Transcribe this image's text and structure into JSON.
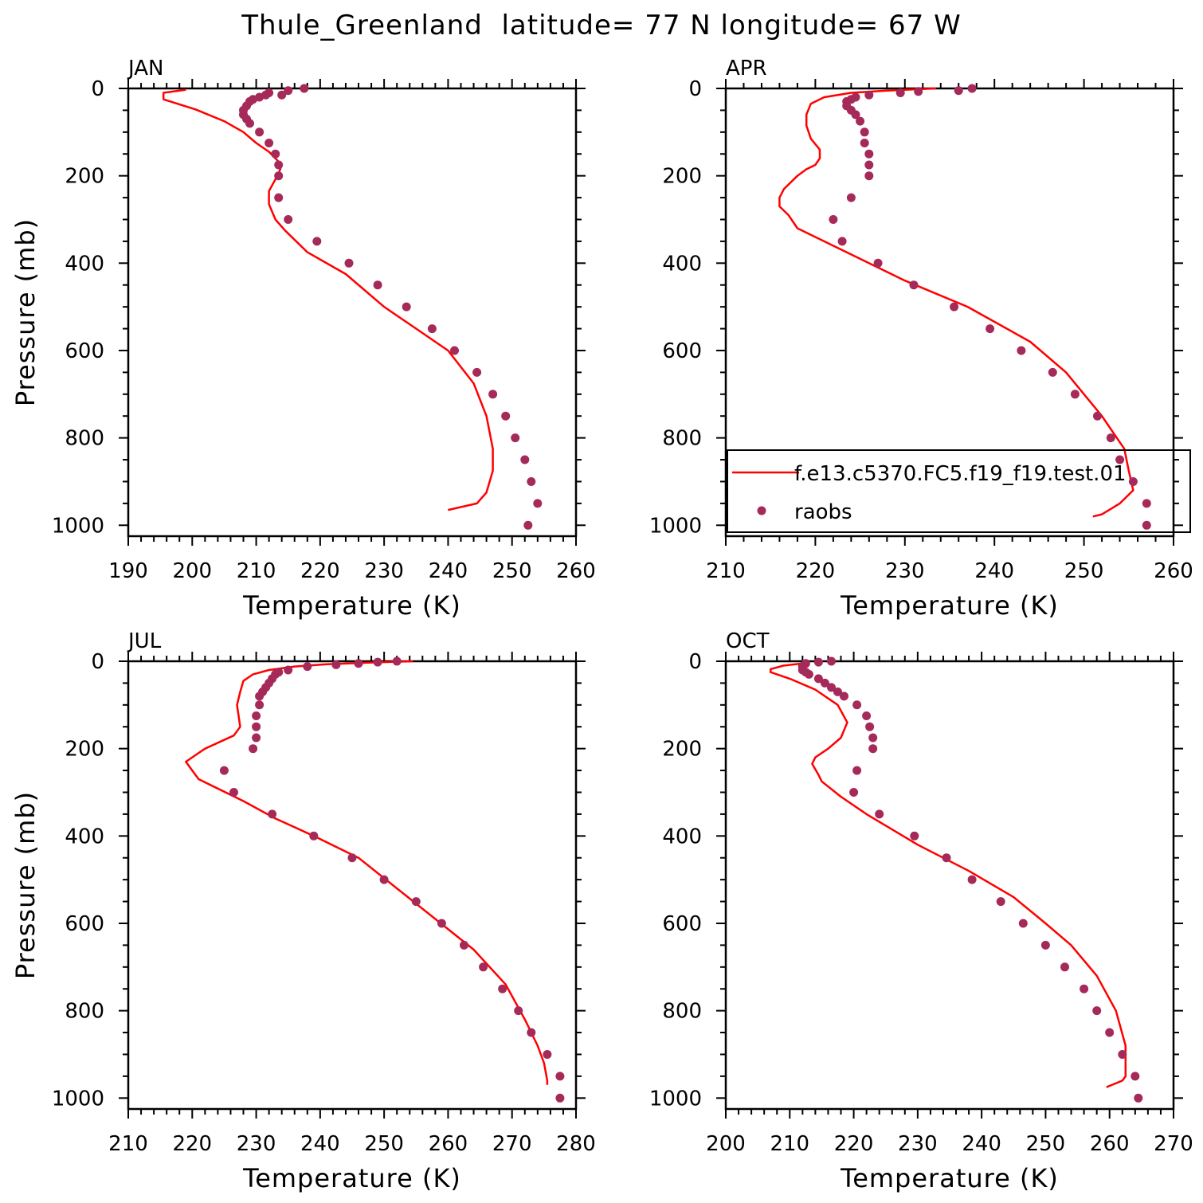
{
  "title": "Thule_Greenland  latitude= 77 N longitude= 67 W",
  "colors": {
    "model": "#ff0000",
    "obs": "#a52a5a",
    "axis": "#000000"
  },
  "legend": {
    "panel": 1,
    "model_label": "f.e13.c5370.FC5.f19_f19.test.01",
    "obs_label": "raobs"
  },
  "chart_data": [
    {
      "type": "line",
      "panel_label": "JAN",
      "xlabel": "Temperature (K)",
      "ylabel": "Pressure (mb)",
      "xlim": [
        190,
        260
      ],
      "ylim": [
        1000,
        0
      ],
      "xticks": [
        190,
        200,
        210,
        220,
        230,
        240,
        250,
        260
      ],
      "yticks": [
        0,
        200,
        400,
        600,
        800,
        1000
      ],
      "series": [
        {
          "kind": "model_line",
          "points": [
            [
              199,
              3
            ],
            [
              195.5,
              10
            ],
            [
              195.5,
              25
            ],
            [
              200.5,
              48
            ],
            [
              205,
              75
            ],
            [
              208,
              100
            ],
            [
              210,
              125
            ],
            [
              212,
              145
            ],
            [
              214,
              175
            ],
            [
              213.5,
              195
            ],
            [
              212,
              235
            ],
            [
              212,
              265
            ],
            [
              213,
              300
            ],
            [
              214.5,
              325
            ],
            [
              218,
              375
            ],
            [
              224,
              425
            ],
            [
              230,
              500
            ],
            [
              236,
              560
            ],
            [
              240,
              600
            ],
            [
              244,
              675
            ],
            [
              246,
              750
            ],
            [
              247,
              825
            ],
            [
              247,
              875
            ],
            [
              246,
              925
            ],
            [
              244.5,
              950
            ],
            [
              240,
              965
            ]
          ]
        },
        {
          "kind": "raobs",
          "points": [
            [
              217.5,
              0
            ],
            [
              215,
              5
            ],
            [
              212,
              10
            ],
            [
              211.5,
              15
            ],
            [
              214,
              15
            ],
            [
              210.5,
              20
            ],
            [
              209.5,
              25
            ],
            [
              209,
              30
            ],
            [
              208.5,
              40
            ],
            [
              208,
              50
            ],
            [
              208,
              60
            ],
            [
              208.5,
              70
            ],
            [
              209,
              80
            ],
            [
              210.5,
              100
            ],
            [
              212,
              125
            ],
            [
              213,
              150
            ],
            [
              213.5,
              175
            ],
            [
              213.5,
              200
            ],
            [
              213.5,
              250
            ],
            [
              215,
              300
            ],
            [
              219.5,
              350
            ],
            [
              224.5,
              400
            ],
            [
              229,
              450
            ],
            [
              233.5,
              500
            ],
            [
              237.5,
              550
            ],
            [
              241,
              600
            ],
            [
              244.5,
              650
            ],
            [
              247,
              700
            ],
            [
              249,
              750
            ],
            [
              250.5,
              800
            ],
            [
              252,
              850
            ],
            [
              253,
              900
            ],
            [
              254,
              950
            ],
            [
              252.5,
              1000
            ]
          ]
        }
      ]
    },
    {
      "type": "line",
      "panel_label": "APR",
      "xlabel": "Temperature (K)",
      "ylabel": "",
      "xlim": [
        210,
        260
      ],
      "ylim": [
        1000,
        0
      ],
      "xticks": [
        210,
        220,
        230,
        240,
        250,
        260
      ],
      "yticks": [
        0,
        200,
        400,
        600,
        800,
        1000
      ],
      "series": [
        {
          "kind": "model_line",
          "points": [
            [
              233.5,
              0
            ],
            [
              228,
              5
            ],
            [
              224,
              10
            ],
            [
              221,
              20
            ],
            [
              219.5,
              35
            ],
            [
              219,
              60
            ],
            [
              219,
              85
            ],
            [
              219.5,
              115
            ],
            [
              220.5,
              140
            ],
            [
              220.5,
              160
            ],
            [
              220,
              175
            ],
            [
              219,
              185
            ],
            [
              218,
              200
            ],
            [
              216.5,
              230
            ],
            [
              216,
              250
            ],
            [
              216,
              270
            ],
            [
              217,
              290
            ],
            [
              218,
              320
            ],
            [
              223,
              370
            ],
            [
              230,
              440
            ],
            [
              237,
              500
            ],
            [
              244,
              580
            ],
            [
              248,
              650
            ],
            [
              252,
              750
            ],
            [
              254.5,
              825
            ],
            [
              255,
              875
            ],
            [
              255.5,
              920
            ],
            [
              254,
              950
            ],
            [
              252,
              975
            ],
            [
              251,
              980
            ]
          ]
        },
        {
          "kind": "raobs",
          "points": [
            [
              237.5,
              0
            ],
            [
              236,
              5
            ],
            [
              231.5,
              7
            ],
            [
              229.5,
              10
            ],
            [
              226,
              15
            ],
            [
              224.5,
              20
            ],
            [
              224,
              25
            ],
            [
              223.5,
              30
            ],
            [
              223.5,
              40
            ],
            [
              224,
              50
            ],
            [
              224.5,
              60
            ],
            [
              225,
              75
            ],
            [
              225.5,
              100
            ],
            [
              225.5,
              125
            ],
            [
              226,
              150
            ],
            [
              226,
              175
            ],
            [
              226,
              200
            ],
            [
              224,
              250
            ],
            [
              222,
              300
            ],
            [
              223,
              350
            ],
            [
              227,
              400
            ],
            [
              231,
              450
            ],
            [
              235.5,
              500
            ],
            [
              239.5,
              550
            ],
            [
              243,
              600
            ],
            [
              246.5,
              650
            ],
            [
              249,
              700
            ],
            [
              251.5,
              750
            ],
            [
              253,
              800
            ],
            [
              254,
              850
            ],
            [
              255.5,
              900
            ],
            [
              257,
              950
            ],
            [
              257,
              1000
            ]
          ]
        }
      ]
    },
    {
      "type": "line",
      "panel_label": "JUL",
      "xlabel": "Temperature (K)",
      "ylabel": "Pressure (mb)",
      "xlim": [
        210,
        280
      ],
      "ylim": [
        1000,
        0
      ],
      "xticks": [
        210,
        220,
        230,
        240,
        250,
        260,
        270,
        280
      ],
      "yticks": [
        0,
        200,
        400,
        600,
        800,
        1000
      ],
      "series": [
        {
          "kind": "model_line",
          "points": [
            [
              254.5,
              0
            ],
            [
              248,
              3
            ],
            [
              241,
              7
            ],
            [
              236,
              12
            ],
            [
              232,
              20
            ],
            [
              229.5,
              30
            ],
            [
              228,
              45
            ],
            [
              227.5,
              70
            ],
            [
              227,
              100
            ],
            [
              227.5,
              150
            ],
            [
              226.5,
              170
            ],
            [
              225,
              180
            ],
            [
              222,
              200
            ],
            [
              219,
              230
            ],
            [
              220,
              250
            ],
            [
              221,
              270
            ],
            [
              228,
              320
            ],
            [
              233,
              360
            ],
            [
              239,
              400
            ],
            [
              246,
              450
            ],
            [
              252,
              520
            ],
            [
              258,
              590
            ],
            [
              264,
              660
            ],
            [
              269,
              740
            ],
            [
              272,
              820
            ],
            [
              274,
              880
            ],
            [
              275,
              920
            ],
            [
              275.5,
              960
            ],
            [
              275.5,
              970
            ]
          ]
        },
        {
          "kind": "raobs",
          "points": [
            [
              252,
              0
            ],
            [
              249,
              2
            ],
            [
              246,
              5
            ],
            [
              242.5,
              8
            ],
            [
              238,
              12
            ],
            [
              235,
              20
            ],
            [
              233.5,
              25
            ],
            [
              233,
              30
            ],
            [
              232.5,
              40
            ],
            [
              232,
              50
            ],
            [
              231.5,
              60
            ],
            [
              231,
              70
            ],
            [
              230.5,
              80
            ],
            [
              230.5,
              100
            ],
            [
              230,
              125
            ],
            [
              230,
              150
            ],
            [
              230,
              175
            ],
            [
              229.5,
              200
            ],
            [
              225,
              250
            ],
            [
              226.5,
              300
            ],
            [
              232.5,
              350
            ],
            [
              239,
              400
            ],
            [
              245,
              450
            ],
            [
              250,
              500
            ],
            [
              255,
              550
            ],
            [
              259,
              600
            ],
            [
              262.5,
              650
            ],
            [
              265.5,
              700
            ],
            [
              268.5,
              750
            ],
            [
              271,
              800
            ],
            [
              273,
              850
            ],
            [
              275.5,
              900
            ],
            [
              277.5,
              950
            ],
            [
              277.5,
              1000
            ]
          ]
        }
      ]
    },
    {
      "type": "line",
      "panel_label": "OCT",
      "xlabel": "Temperature (K)",
      "ylabel": "",
      "xlim": [
        200,
        270
      ],
      "ylim": [
        1000,
        0
      ],
      "xticks": [
        200,
        210,
        220,
        230,
        240,
        250,
        260,
        270
      ],
      "yticks": [
        0,
        200,
        400,
        600,
        800,
        1000
      ],
      "series": [
        {
          "kind": "model_line",
          "points": [
            [
              212,
              5
            ],
            [
              209,
              10
            ],
            [
              207,
              18
            ],
            [
              207,
              25
            ],
            [
              210,
              40
            ],
            [
              214,
              65
            ],
            [
              217.5,
              100
            ],
            [
              219,
              140
            ],
            [
              218,
              175
            ],
            [
              216,
              200
            ],
            [
              214,
              220
            ],
            [
              213.5,
              235
            ],
            [
              214.5,
              260
            ],
            [
              215,
              275
            ],
            [
              218,
              310
            ],
            [
              222,
              350
            ],
            [
              230,
              420
            ],
            [
              238,
              480
            ],
            [
              245,
              540
            ],
            [
              250,
              600
            ],
            [
              254,
              650
            ],
            [
              258,
              720
            ],
            [
              261,
              800
            ],
            [
              262.5,
              880
            ],
            [
              262.5,
              950
            ],
            [
              262,
              960
            ],
            [
              259.5,
              975
            ]
          ]
        },
        {
          "kind": "raobs",
          "points": [
            [
              216.5,
              0
            ],
            [
              214.5,
              2
            ],
            [
              212.5,
              5
            ],
            [
              212,
              12
            ],
            [
              212,
              20
            ],
            [
              212.5,
              25
            ],
            [
              213,
              30
            ],
            [
              214.5,
              40
            ],
            [
              215.5,
              50
            ],
            [
              216.5,
              60
            ],
            [
              217.5,
              70
            ],
            [
              218.5,
              80
            ],
            [
              220.5,
              100
            ],
            [
              222,
              125
            ],
            [
              222.5,
              150
            ],
            [
              223,
              175
            ],
            [
              223,
              200
            ],
            [
              220.5,
              250
            ],
            [
              220,
              300
            ],
            [
              224,
              350
            ],
            [
              229.5,
              400
            ],
            [
              234.5,
              450
            ],
            [
              238.5,
              500
            ],
            [
              243,
              550
            ],
            [
              246.5,
              600
            ],
            [
              250,
              650
            ],
            [
              253,
              700
            ],
            [
              256,
              750
            ],
            [
              258,
              800
            ],
            [
              260,
              850
            ],
            [
              262,
              900
            ],
            [
              264,
              950
            ],
            [
              264.5,
              1000
            ]
          ]
        }
      ]
    }
  ]
}
